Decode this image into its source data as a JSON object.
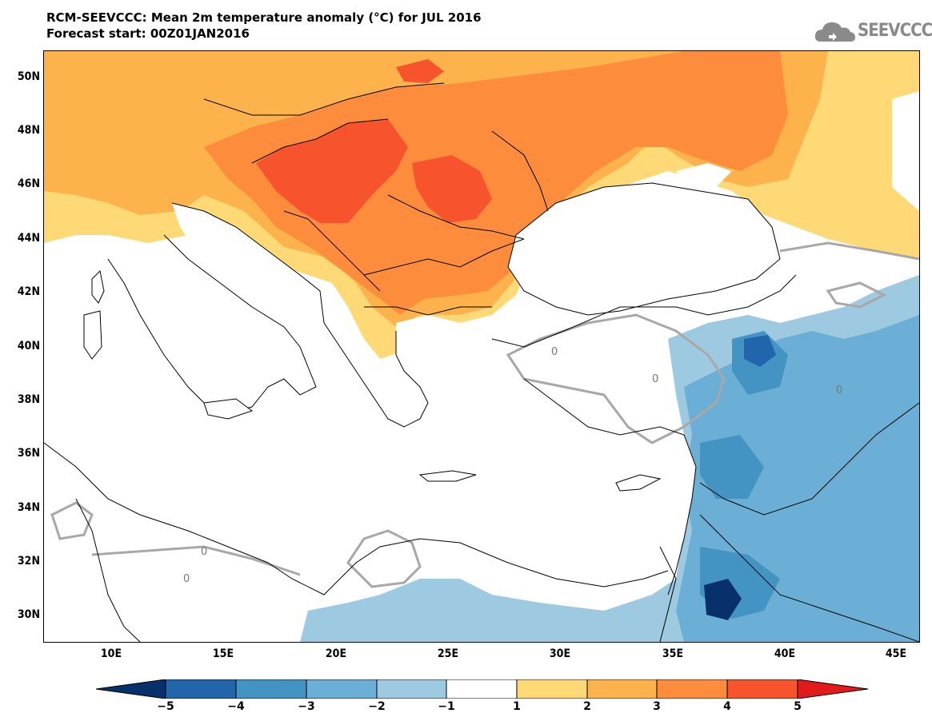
{
  "header": {
    "title_line1": "RCM-SEEVCCC: Mean 2m temperature anomaly (°C) for JUL 2016",
    "title_line2": "Forecast start: 00Z01JAN2016"
  },
  "logo": {
    "text": "SEEVCCC",
    "icon": "cloud-icon"
  },
  "map": {
    "lat_labels": [
      "50N",
      "48N",
      "46N",
      "44N",
      "42N",
      "40N",
      "38N",
      "36N",
      "34N",
      "32N",
      "30N"
    ],
    "lon_labels": [
      "10E",
      "15E",
      "20E",
      "25E",
      "30E",
      "35E",
      "40E",
      "45E"
    ],
    "contour_label": "0",
    "colors": {
      "minus5": "#08306b",
      "minus4": "#2166ac",
      "minus3": "#4393c3",
      "minus2": "#6baed6",
      "minus1": "#9ecae1",
      "zero": "#ffffff",
      "plus1": "#fed976",
      "plus2": "#feb24c",
      "plus3": "#fd8d3c",
      "plus4": "#f7542e",
      "plus5": "#e31a1c"
    }
  },
  "colorbar": {
    "labels": [
      "−5",
      "−4",
      "−3",
      "−2",
      "−1",
      "1",
      "2",
      "3",
      "4",
      "5"
    ],
    "colors": [
      "#08306b",
      "#2166ac",
      "#4393c3",
      "#6baed6",
      "#9ecae1",
      "#ffffff",
      "#fed976",
      "#feb24c",
      "#fd8d3c",
      "#f7542e",
      "#e31a1c"
    ]
  }
}
